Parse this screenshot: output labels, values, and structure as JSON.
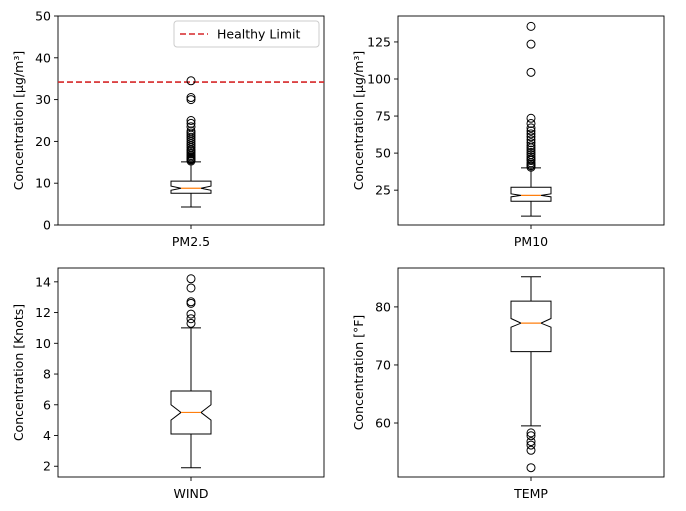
{
  "chart_data": [
    {
      "type": "boxplot",
      "category": "PM2.5",
      "ylabel": "Concentration [µg/m³]",
      "ylim": [
        0,
        50
      ],
      "yticks": [
        0,
        10,
        20,
        30,
        40,
        50
      ],
      "notched": true,
      "box": {
        "whisker_low": 4.3,
        "q1": 7.6,
        "median": 8.8,
        "q3": 10.5,
        "whisker_high": 15.1,
        "notch_low": 8.3,
        "notch_high": 9.3
      },
      "outliers": [
        15.3,
        15.6,
        15.8,
        16.0,
        16.3,
        16.6,
        17.0,
        17.3,
        17.7,
        18.0,
        18.5,
        19.0,
        19.5,
        20.0,
        20.5,
        21.0,
        21.5,
        22.0,
        22.5,
        23.5,
        24.3,
        25.0,
        30.0,
        30.5,
        34.5
      ],
      "reference_line": {
        "y": 34.2,
        "color": "#d62728",
        "style": "dashed"
      },
      "legend": {
        "entries": [
          "Healthy Limit"
        ],
        "position": "top-right"
      }
    },
    {
      "type": "boxplot",
      "category": "PM10",
      "ylabel": "Concentration [µg/m³]",
      "ylim": [
        1.5,
        142.5
      ],
      "yticks": [
        25,
        50,
        75,
        100,
        125
      ],
      "notched": true,
      "box": {
        "whisker_low": 7.5,
        "q1": 17.5,
        "median": 21.5,
        "q3": 27.0,
        "whisker_high": 40.0,
        "notch_low": 20.5,
        "notch_high": 22.5
      },
      "outliers": [
        40.5,
        41.5,
        42.5,
        43.5,
        45.0,
        46.0,
        47.5,
        49.0,
        50.5,
        52.0,
        53.5,
        55.0,
        57.0,
        59.0,
        61.0,
        63.0,
        65.0,
        67.0,
        70.0,
        73.5,
        104.5,
        123.5,
        135.5
      ]
    },
    {
      "type": "boxplot",
      "category": "WIND",
      "ylabel": "Concentration [Knots]",
      "ylim": [
        1.3,
        14.9
      ],
      "yticks": [
        2,
        4,
        6,
        8,
        10,
        12,
        14
      ],
      "notched": true,
      "box": {
        "whisker_low": 1.9,
        "q1": 4.1,
        "median": 5.5,
        "q3": 6.9,
        "whisker_high": 11.0,
        "notch_low": 5.0,
        "notch_high": 6.0
      },
      "outliers": [
        11.3,
        11.6,
        11.9,
        12.6,
        12.7,
        13.6,
        14.2
      ]
    },
    {
      "type": "boxplot",
      "category": "TEMP",
      "ylabel": "Concentration [°F]",
      "ylim": [
        50.7,
        86.7
      ],
      "yticks": [
        60,
        70,
        80
      ],
      "notched": true,
      "box": {
        "whisker_low": 59.5,
        "q1": 72.3,
        "median": 77.2,
        "q3": 81.0,
        "whisker_high": 85.2,
        "notch_low": 76.5,
        "notch_high": 78.0
      },
      "outliers": [
        58.3,
        57.8,
        56.8,
        56.2,
        55.3,
        52.3
      ]
    }
  ]
}
